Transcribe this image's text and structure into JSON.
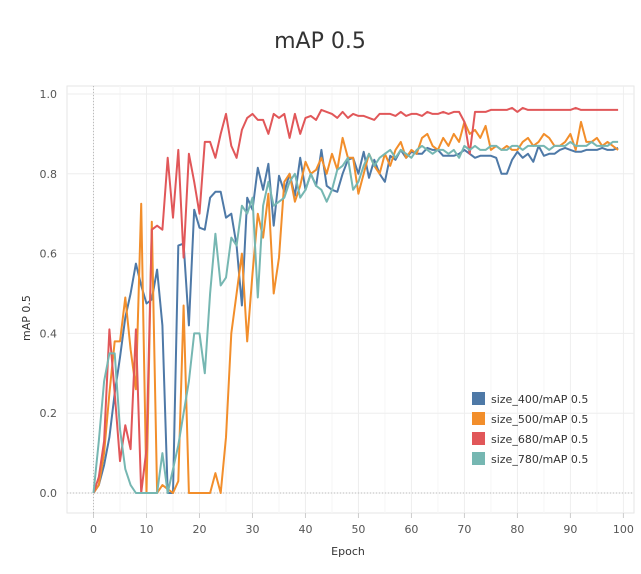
{
  "chart_data": {
    "type": "line",
    "title": "mAP 0.5",
    "xlabel": "Epoch",
    "ylabel": "mAP 0.5",
    "xlim": [
      -5,
      102
    ],
    "ylim": [
      -0.05,
      1.02
    ],
    "x_ticks": [
      0,
      10,
      20,
      30,
      40,
      50,
      60,
      70,
      80,
      90,
      100
    ],
    "y_ticks": [
      0.0,
      0.2,
      0.4,
      0.6,
      0.8,
      1.0
    ],
    "y_tick_labels": [
      "0.0",
      "0.2",
      "0.4",
      "0.6",
      "0.8",
      "1.0"
    ],
    "grid": true,
    "legend_position": "bottom-right",
    "x": [
      0,
      1,
      2,
      3,
      4,
      5,
      6,
      7,
      8,
      9,
      10,
      11,
      12,
      13,
      14,
      15,
      16,
      17,
      18,
      19,
      20,
      21,
      22,
      23,
      24,
      25,
      26,
      27,
      28,
      29,
      30,
      31,
      32,
      33,
      34,
      35,
      36,
      37,
      38,
      39,
      40,
      41,
      42,
      43,
      44,
      45,
      46,
      47,
      48,
      49,
      50,
      51,
      52,
      53,
      54,
      55,
      56,
      57,
      58,
      59,
      60,
      61,
      62,
      63,
      64,
      65,
      66,
      67,
      68,
      69,
      70,
      71,
      72,
      73,
      74,
      75,
      76,
      77,
      78,
      79,
      80,
      81,
      82,
      83,
      84,
      85,
      86,
      87,
      88,
      89,
      90,
      91,
      92,
      93,
      94,
      95,
      96,
      97,
      98,
      99
    ],
    "series": [
      {
        "name": "size_400/mAP 0.5",
        "color": "#4e79a7",
        "values": [
          0.0,
          0.02,
          0.07,
          0.14,
          0.25,
          0.34,
          0.44,
          0.5,
          0.575,
          0.52,
          0.475,
          0.485,
          0.56,
          0.42,
          0.0,
          0.0,
          0.62,
          0.625,
          0.42,
          0.71,
          0.665,
          0.66,
          0.74,
          0.755,
          0.755,
          0.69,
          0.7,
          0.62,
          0.47,
          0.74,
          0.71,
          0.815,
          0.76,
          0.825,
          0.67,
          0.795,
          0.755,
          0.8,
          0.745,
          0.84,
          0.76,
          0.8,
          0.77,
          0.86,
          0.77,
          0.76,
          0.755,
          0.8,
          0.835,
          0.84,
          0.8,
          0.855,
          0.79,
          0.835,
          0.8,
          0.78,
          0.845,
          0.835,
          0.86,
          0.84,
          0.855,
          0.85,
          0.85,
          0.865,
          0.86,
          0.86,
          0.845,
          0.845,
          0.845,
          0.85,
          0.86,
          0.85,
          0.84,
          0.845,
          0.845,
          0.845,
          0.84,
          0.8,
          0.8,
          0.835,
          0.855,
          0.84,
          0.85,
          0.83,
          0.87,
          0.845,
          0.85,
          0.85,
          0.86,
          0.865,
          0.86,
          0.855,
          0.855,
          0.86,
          0.86,
          0.86,
          0.865,
          0.86,
          0.86,
          0.865
        ]
      },
      {
        "name": "size_500/mAP 0.5",
        "color": "#f28e2b",
        "values": [
          0.0,
          0.02,
          0.1,
          0.25,
          0.38,
          0.38,
          0.49,
          0.36,
          0.26,
          0.725,
          0.0,
          0.68,
          0.0,
          0.02,
          0.01,
          0.0,
          0.03,
          0.47,
          0.0,
          0.0,
          0.0,
          0.0,
          0.0,
          0.05,
          0.0,
          0.14,
          0.4,
          0.5,
          0.6,
          0.38,
          0.55,
          0.7,
          0.64,
          0.75,
          0.5,
          0.59,
          0.78,
          0.8,
          0.73,
          0.77,
          0.83,
          0.8,
          0.81,
          0.84,
          0.8,
          0.85,
          0.81,
          0.89,
          0.84,
          0.84,
          0.75,
          0.8,
          0.85,
          0.82,
          0.8,
          0.85,
          0.82,
          0.86,
          0.88,
          0.84,
          0.86,
          0.85,
          0.89,
          0.9,
          0.87,
          0.86,
          0.89,
          0.87,
          0.9,
          0.88,
          0.93,
          0.9,
          0.91,
          0.89,
          0.92,
          0.86,
          0.87,
          0.86,
          0.87,
          0.86,
          0.86,
          0.88,
          0.89,
          0.87,
          0.88,
          0.9,
          0.89,
          0.87,
          0.87,
          0.88,
          0.9,
          0.86,
          0.93,
          0.88,
          0.88,
          0.89,
          0.87,
          0.88,
          0.87,
          0.86
        ]
      },
      {
        "name": "size_680/mAP 0.5",
        "color": "#e15759",
        "values": [
          0.0,
          0.04,
          0.13,
          0.41,
          0.25,
          0.08,
          0.17,
          0.11,
          0.41,
          0.0,
          0.11,
          0.66,
          0.67,
          0.66,
          0.84,
          0.69,
          0.86,
          0.59,
          0.85,
          0.78,
          0.7,
          0.88,
          0.88,
          0.84,
          0.9,
          0.95,
          0.87,
          0.84,
          0.91,
          0.94,
          0.95,
          0.935,
          0.935,
          0.9,
          0.95,
          0.94,
          0.95,
          0.89,
          0.95,
          0.9,
          0.94,
          0.945,
          0.935,
          0.96,
          0.955,
          0.95,
          0.94,
          0.955,
          0.94,
          0.95,
          0.945,
          0.945,
          0.94,
          0.935,
          0.95,
          0.95,
          0.95,
          0.945,
          0.955,
          0.945,
          0.95,
          0.95,
          0.945,
          0.955,
          0.95,
          0.95,
          0.955,
          0.95,
          0.955,
          0.955,
          0.93,
          0.85,
          0.955,
          0.955,
          0.955,
          0.96,
          0.96,
          0.96,
          0.96,
          0.965,
          0.955,
          0.965,
          0.96,
          0.96,
          0.96,
          0.96,
          0.96,
          0.96,
          0.96,
          0.96,
          0.96,
          0.965,
          0.96,
          0.96,
          0.96,
          0.96,
          0.96,
          0.96,
          0.96,
          0.96
        ]
      },
      {
        "name": "size_780/mAP 0.5",
        "color": "#76b7b2",
        "values": [
          0.0,
          0.13,
          0.28,
          0.35,
          0.35,
          0.16,
          0.06,
          0.02,
          0.0,
          0.0,
          0.0,
          0.0,
          0.0,
          0.1,
          0.0,
          0.06,
          0.12,
          0.2,
          0.28,
          0.4,
          0.4,
          0.3,
          0.5,
          0.65,
          0.52,
          0.54,
          0.64,
          0.62,
          0.72,
          0.7,
          0.74,
          0.49,
          0.72,
          0.78,
          0.72,
          0.73,
          0.74,
          0.78,
          0.8,
          0.74,
          0.76,
          0.8,
          0.77,
          0.76,
          0.73,
          0.76,
          0.81,
          0.82,
          0.84,
          0.76,
          0.78,
          0.82,
          0.85,
          0.82,
          0.84,
          0.85,
          0.86,
          0.84,
          0.86,
          0.85,
          0.84,
          0.86,
          0.87,
          0.86,
          0.85,
          0.86,
          0.86,
          0.85,
          0.86,
          0.84,
          0.87,
          0.86,
          0.87,
          0.86,
          0.86,
          0.87,
          0.87,
          0.86,
          0.86,
          0.87,
          0.87,
          0.86,
          0.87,
          0.87,
          0.87,
          0.87,
          0.86,
          0.87,
          0.87,
          0.87,
          0.88,
          0.87,
          0.87,
          0.87,
          0.88,
          0.87,
          0.87,
          0.87,
          0.88,
          0.88
        ]
      }
    ]
  }
}
